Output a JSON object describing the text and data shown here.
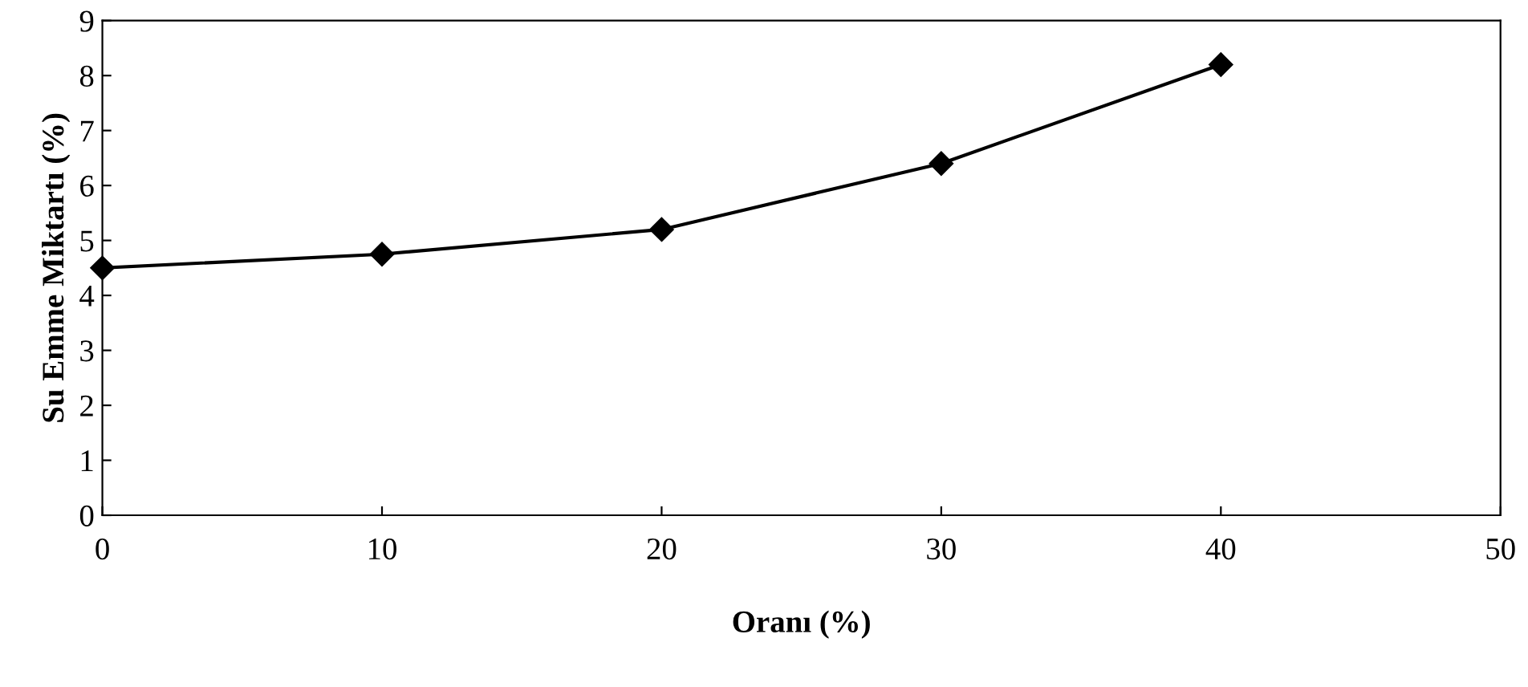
{
  "chart_data": {
    "type": "line",
    "xlabel": "Oranı (%)",
    "ylabel": "Su Emme Miktartı (%)",
    "x": [
      0,
      10,
      20,
      30,
      40
    ],
    "series": [
      {
        "color": "#000000",
        "values": [
          4.5,
          4.75,
          5.2,
          6.4,
          8.2
        ]
      }
    ],
    "xlim": [
      0,
      50
    ],
    "xticks": [
      0,
      10,
      20,
      30,
      40,
      50
    ],
    "ylim": [
      0,
      9
    ],
    "yticks": [
      0,
      1,
      2,
      3,
      4,
      5,
      6,
      7,
      8,
      9
    ],
    "grid": false,
    "legend": false,
    "marker": "diamond",
    "line_style": "solid"
  }
}
